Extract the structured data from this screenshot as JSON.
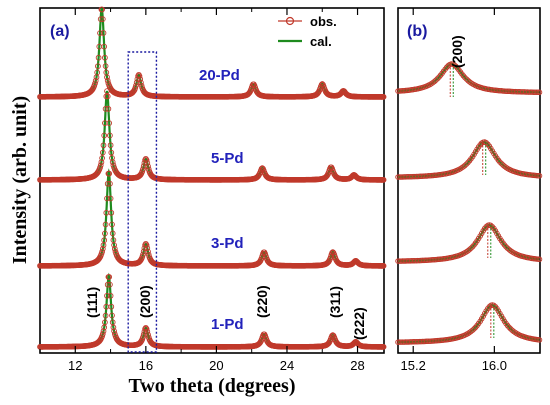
{
  "colors": {
    "obs": "#c0392b",
    "cal": "#1e8b1e",
    "label_blue": "#2222bb",
    "box": "#1a1aa0"
  },
  "chart_data": [
    {
      "panel": "(a)",
      "type": "line",
      "xlabel": "Two theta (degrees)",
      "ylabel": "Intensity (arb. unit)",
      "xlim": [
        10,
        29.5
      ],
      "xticks": [
        12,
        16,
        20,
        24,
        28
      ],
      "minor_xticks": [
        10,
        14,
        18,
        22,
        26
      ],
      "legend": {
        "position": "top-right",
        "entries": [
          {
            "label": "obs.",
            "marker": "open-circle"
          },
          {
            "label": "cal.",
            "marker": "line"
          }
        ]
      },
      "highlight_box_x": [
        15.0,
        16.6
      ],
      "series": [
        {
          "name": "1-Pd",
          "peaks": [
            {
              "x": 13.9,
              "h": 0.72
            },
            {
              "x": 16.0,
              "h": 0.19
            },
            {
              "x": 22.7,
              "h": 0.13
            },
            {
              "x": 26.6,
              "h": 0.12
            },
            {
              "x": 27.9,
              "h": 0.05
            }
          ]
        },
        {
          "name": "3-Pd",
          "peaks": [
            {
              "x": 13.9,
              "h": 0.95
            },
            {
              "x": 16.0,
              "h": 0.22
            },
            {
              "x": 22.7,
              "h": 0.14
            },
            {
              "x": 26.6,
              "h": 0.14
            },
            {
              "x": 27.9,
              "h": 0.05
            }
          ]
        },
        {
          "name": "5-Pd",
          "peaks": [
            {
              "x": 13.8,
              "h": 0.9
            },
            {
              "x": 16.0,
              "h": 0.21
            },
            {
              "x": 22.6,
              "h": 0.12
            },
            {
              "x": 26.5,
              "h": 0.13
            },
            {
              "x": 27.8,
              "h": 0.05
            }
          ]
        },
        {
          "name": "20-Pd",
          "peaks": [
            {
              "x": 13.5,
              "h": 0.9
            },
            {
              "x": 15.6,
              "h": 0.22
            },
            {
              "x": 22.1,
              "h": 0.13
            },
            {
              "x": 26.0,
              "h": 0.13
            },
            {
              "x": 27.2,
              "h": 0.06
            }
          ]
        }
      ],
      "annotations": [
        "(111)",
        "(200)",
        "(220)",
        "(311)",
        "(222)"
      ]
    },
    {
      "panel": "(b)",
      "type": "line",
      "xlim": [
        15.05,
        16.45
      ],
      "xticks": [
        15.2,
        16.0
      ],
      "annotation": "(200)",
      "series": [
        {
          "name": "1-Pd",
          "peak_x": 15.98
        },
        {
          "name": "3-Pd",
          "peak_x": 15.95
        },
        {
          "name": "5-Pd",
          "peak_x": 15.9
        },
        {
          "name": "20-Pd",
          "peak_x": 15.58
        }
      ]
    }
  ]
}
